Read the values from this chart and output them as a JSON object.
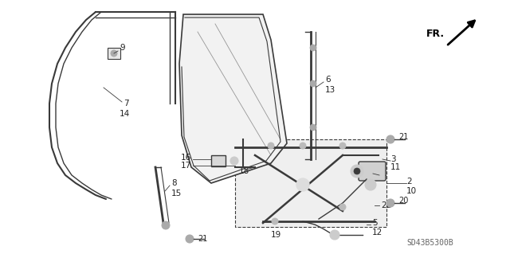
{
  "background_color": "#ffffff",
  "figsize": [
    6.4,
    3.19
  ],
  "dpi": 100,
  "line_color": "#3a3a3a",
  "text_color": "#222222",
  "diagram_code": "SD43B5300B"
}
